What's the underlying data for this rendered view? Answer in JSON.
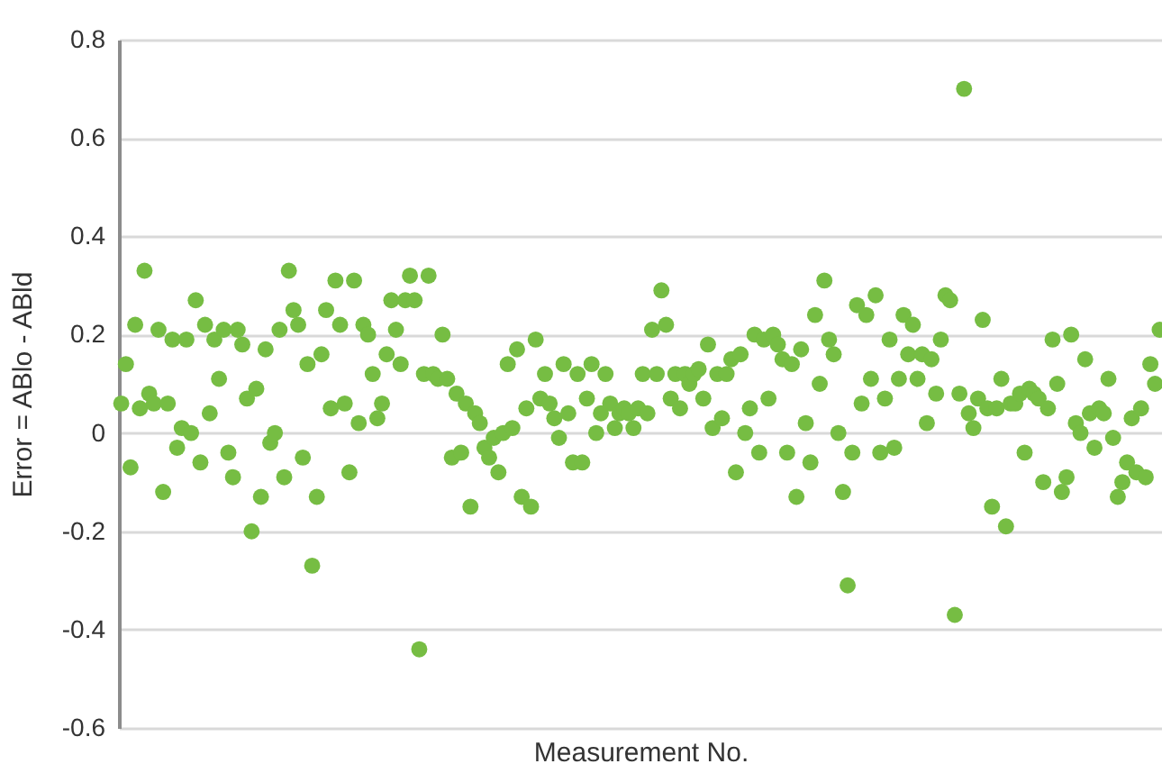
{
  "chart_data": {
    "type": "scatter",
    "xlabel": "Measurement No.",
    "ylabel": "Error = ABlo - ABld",
    "categories": [
      null,
      null,
      null,
      null,
      null,
      null,
      null,
      null,
      null,
      null,
      null,
      null,
      null,
      null,
      null,
      null,
      null,
      null,
      null,
      null,
      null,
      null,
      null,
      null,
      null,
      null,
      null,
      null,
      null,
      null,
      null,
      null,
      null,
      null,
      null,
      null,
      null,
      null,
      null,
      null,
      null,
      null,
      null,
      null,
      null,
      null,
      null,
      null,
      null,
      null,
      null,
      null,
      null,
      null,
      null,
      null,
      null,
      null,
      null,
      null,
      null,
      null,
      null,
      null,
      null,
      null,
      null,
      null,
      null,
      null,
      null,
      null,
      null,
      null,
      null,
      null,
      null,
      null,
      null,
      null,
      null,
      null,
      null,
      null,
      null,
      null,
      null,
      null,
      null,
      null,
      null,
      null,
      null,
      null,
      null,
      null,
      null,
      null,
      null,
      null,
      null,
      null,
      null,
      null,
      null,
      null,
      null,
      null,
      null,
      null,
      null,
      null,
      null,
      null,
      null,
      null,
      null,
      null,
      null,
      null,
      null,
      null,
      null,
      null,
      null,
      null,
      null,
      null,
      null,
      null,
      null,
      null,
      null,
      null,
      null,
      null,
      null,
      null,
      null,
      null,
      null,
      null,
      null,
      null,
      null,
      null,
      null,
      null,
      null,
      null,
      null,
      null,
      null,
      null,
      null,
      null,
      null,
      null,
      null,
      null,
      null,
      null,
      null,
      null,
      null,
      null,
      null,
      null,
      null,
      null,
      null,
      null,
      null,
      null,
      null,
      null,
      null,
      null,
      null,
      null,
      null,
      null,
      null,
      null,
      null,
      null,
      null,
      null,
      null,
      null,
      null,
      null,
      null,
      null,
      null,
      null,
      null,
      null,
      null,
      null,
      null,
      null,
      null,
      null,
      null,
      null,
      null,
      null,
      null,
      null,
      null,
      null,
      null,
      null,
      null,
      null,
      null,
      null,
      null,
      null,
      null,
      null,
      null,
      null
    ],
    "values": [
      0.06,
      0.14,
      -0.07,
      0.22,
      0.05,
      0.33,
      0.08,
      0.06,
      0.21,
      -0.12,
      0.06,
      0.19,
      -0.03,
      0.01,
      0.19,
      0.0,
      0.27,
      -0.06,
      0.22,
      0.04,
      0.19,
      0.11,
      0.21,
      -0.04,
      -0.09,
      0.21,
      0.18,
      0.07,
      -0.2,
      0.09,
      -0.13,
      0.17,
      -0.02,
      0.0,
      0.21,
      -0.09,
      0.33,
      0.25,
      0.22,
      -0.05,
      0.14,
      -0.27,
      -0.13,
      0.16,
      0.25,
      0.05,
      0.31,
      0.22,
      0.06,
      -0.08,
      0.31,
      0.02,
      0.22,
      0.2,
      0.12,
      0.03,
      0.06,
      0.16,
      0.27,
      0.21,
      0.14,
      0.27,
      0.32,
      0.27,
      -0.44,
      0.12,
      0.32,
      0.12,
      0.11,
      0.2,
      0.11,
      -0.05,
      0.08,
      -0.04,
      0.06,
      -0.15,
      0.04,
      0.02,
      -0.03,
      -0.05,
      -0.01,
      -0.08,
      0.0,
      0.14,
      0.01,
      0.17,
      -0.13,
      0.05,
      -0.15,
      0.19,
      0.07,
      0.12,
      0.06,
      0.03,
      -0.01,
      0.14,
      0.04,
      -0.06,
      0.12,
      -0.06,
      0.07,
      0.14,
      0.0,
      0.04,
      0.12,
      0.06,
      0.01,
      0.04,
      0.05,
      0.04,
      0.01,
      0.05,
      0.12,
      0.04,
      0.21,
      0.12,
      0.29,
      0.22,
      0.07,
      0.12,
      0.05,
      0.12,
      0.1,
      0.12,
      0.13,
      0.07,
      0.18,
      0.01,
      0.12,
      0.03,
      0.12,
      0.15,
      -0.08,
      0.16,
      0.0,
      0.05,
      0.2,
      -0.04,
      0.19,
      0.07,
      0.2,
      0.18,
      0.15,
      -0.04,
      0.14,
      -0.13,
      0.17,
      0.02,
      -0.06,
      0.24,
      0.1,
      0.31,
      0.19,
      0.16,
      0.0,
      -0.12,
      -0.31,
      -0.04,
      0.26,
      0.06,
      0.24,
      0.11,
      0.28,
      -0.04,
      0.07,
      0.19,
      -0.03,
      0.11,
      0.24,
      0.16,
      0.22,
      0.11,
      0.16,
      0.02,
      0.15,
      0.08,
      0.19,
      0.28,
      0.27,
      -0.37,
      0.08,
      0.7,
      0.04,
      0.01,
      0.07,
      0.23,
      0.05,
      -0.15,
      0.05,
      0.11,
      -0.19,
      0.06,
      0.06,
      0.08,
      -0.04,
      0.09,
      0.08,
      0.07,
      -0.1,
      0.05,
      0.19,
      0.1,
      -0.12,
      -0.09,
      0.2,
      0.02,
      0.0,
      0.15,
      0.04,
      -0.03,
      0.05,
      0.04,
      0.11,
      -0.01,
      -0.13,
      -0.1,
      -0.06,
      0.03,
      -0.08,
      0.05,
      -0.09,
      0.14,
      0.1,
      0.21
    ],
    "color": "#76bd43",
    "marker": "circle",
    "ylim": [
      -0.6,
      0.8
    ],
    "yticks": [
      -0.6,
      -0.4,
      -0.2,
      0,
      0.2,
      0.4,
      0.6,
      0.8
    ],
    "grid": "y",
    "tick_labels": "y"
  }
}
